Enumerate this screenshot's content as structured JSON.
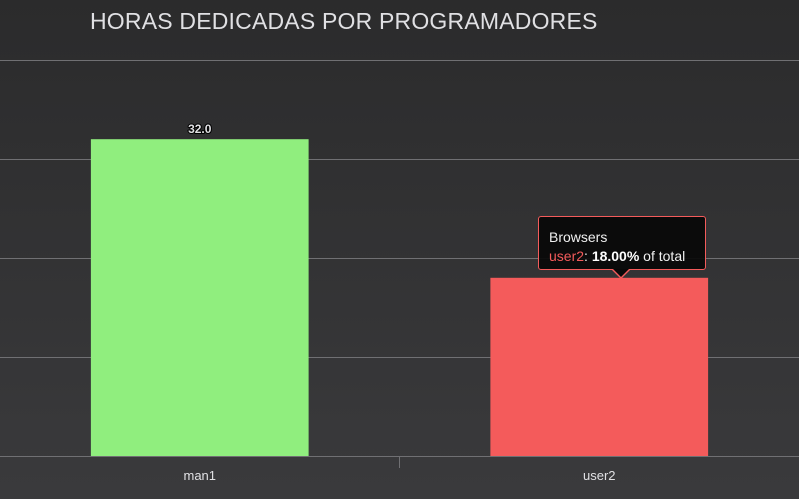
{
  "chart_data": {
    "type": "bar",
    "title": "HORAS DEDICADAS POR PROGRAMADORES",
    "categories": [
      "man1",
      "user2"
    ],
    "values": [
      32.0,
      18.0
    ],
    "data_labels": [
      "32.0",
      ""
    ],
    "colors": [
      "#90ee7e",
      "#f45b5b"
    ],
    "ylim": [
      0,
      40
    ],
    "grid": true,
    "legend": "none",
    "background_color": "#2f2f31",
    "grid_color": "#707073",
    "text_color": "#e0e0e3"
  },
  "tooltip": {
    "heading": "Browsers",
    "series_name": "user2",
    "separator": ": ",
    "value_text": "18.00%",
    "suffix_text": " of total"
  }
}
